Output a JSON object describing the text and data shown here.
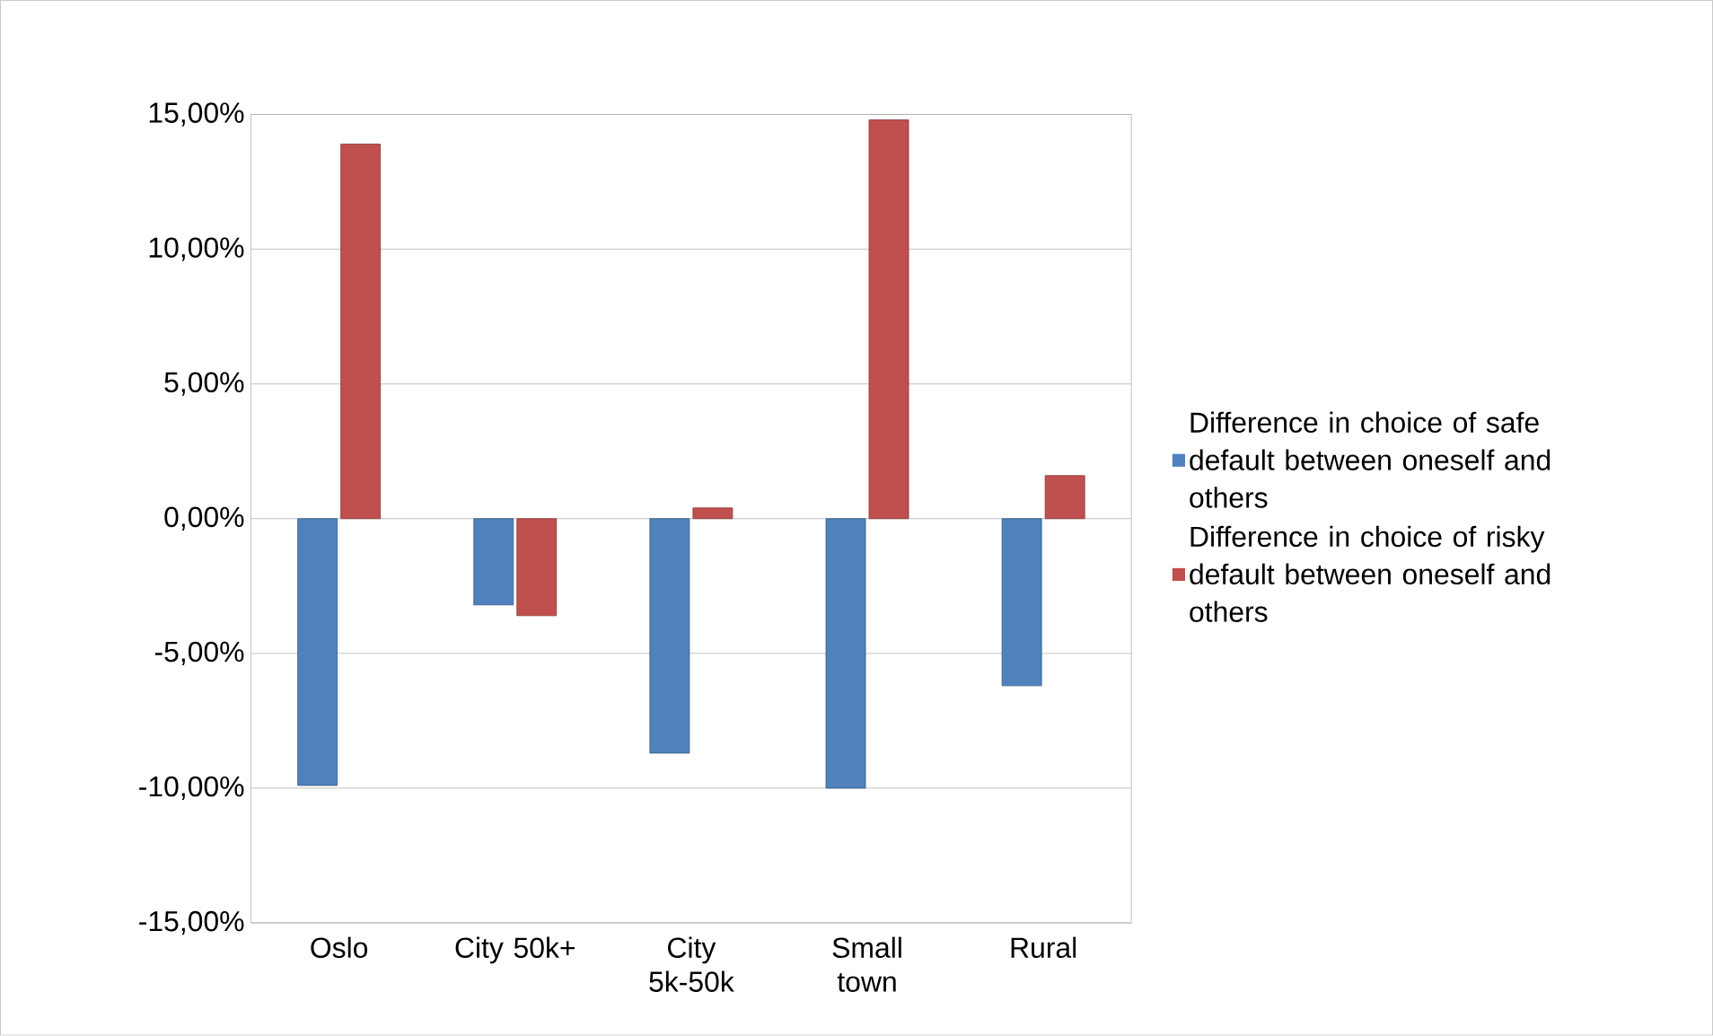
{
  "chart_data": {
    "type": "bar",
    "categories": [
      "Oslo",
      "City 50k+",
      "City 5k-50k",
      "Small town",
      "Rural"
    ],
    "series": [
      {
        "name": "Difference in choice of safe default between oneself and others",
        "color": "#4f81bd",
        "values": [
          -9.9,
          -3.2,
          -8.7,
          -10.0,
          -6.2
        ]
      },
      {
        "name": "Difference in choice of risky default between oneself and others",
        "color": "#c0504d",
        "values": [
          13.9,
          -3.6,
          0.4,
          14.8,
          1.6
        ]
      }
    ],
    "ylim": [
      -15,
      15
    ],
    "yticks": [
      {
        "value": -15,
        "label": "-15,00%"
      },
      {
        "value": -10,
        "label": "-10,00%"
      },
      {
        "value": -5,
        "label": "-5,00%"
      },
      {
        "value": 0,
        "label": "0,00%"
      },
      {
        "value": 5,
        "label": "5,00%"
      },
      {
        "value": 10,
        "label": "10,00%"
      },
      {
        "value": 15,
        "label": "15,00%"
      }
    ],
    "grid": "y",
    "legend": "right"
  }
}
